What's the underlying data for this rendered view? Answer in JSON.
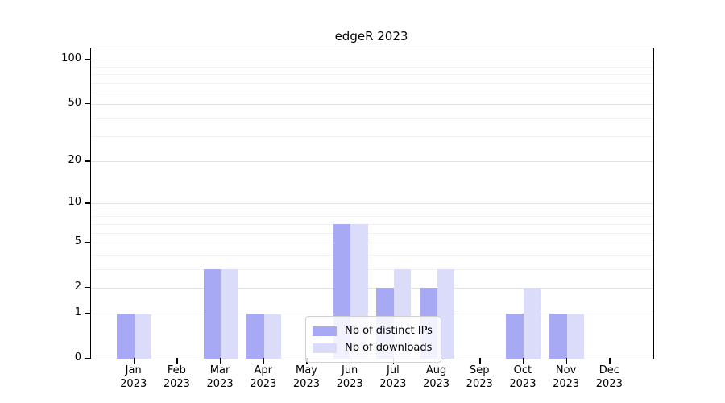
{
  "chart_data": {
    "type": "bar",
    "title": "edgeR 2023",
    "categories": [
      "Jan",
      "Feb",
      "Mar",
      "Apr",
      "May",
      "Jun",
      "Jul",
      "Aug",
      "Sep",
      "Oct",
      "Nov",
      "Dec"
    ],
    "category_year": "2023",
    "series": [
      {
        "name": "Nb of distinct IPs",
        "color": "#a7a9f4",
        "values": [
          1,
          0,
          3,
          1,
          0,
          7,
          2,
          2,
          0,
          1,
          1,
          0
        ]
      },
      {
        "name": "Nb of downloads",
        "color": "#dadcf9",
        "values": [
          1,
          0,
          3,
          1,
          0,
          7,
          3,
          3,
          0,
          2,
          1,
          0
        ]
      }
    ],
    "yscale": "log1p",
    "ylim": [
      0,
      100
    ],
    "yticks": [
      0,
      1,
      2,
      5,
      10,
      20,
      50,
      100
    ],
    "yticks_minor": [
      3,
      4,
      6,
      7,
      8,
      9,
      30,
      40,
      60,
      70,
      80,
      90
    ],
    "grid": "horizontal",
    "legend_position": "lower center"
  }
}
